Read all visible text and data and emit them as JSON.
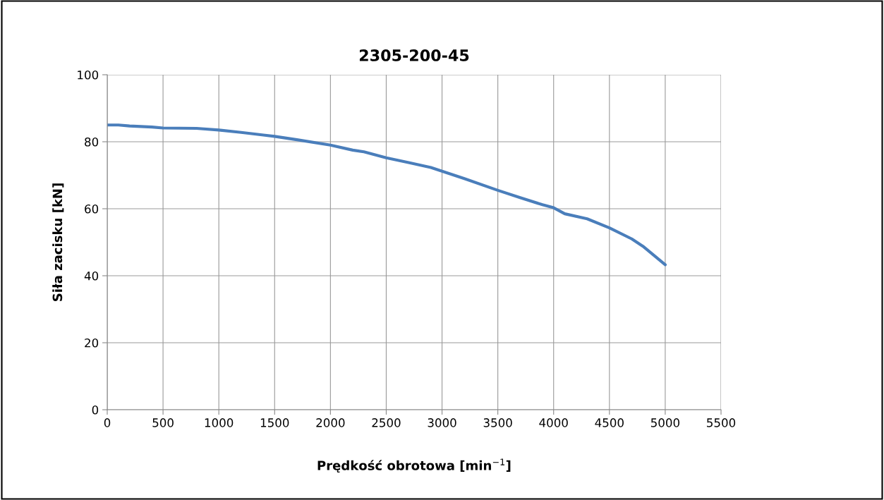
{
  "chart_data": {
    "type": "line",
    "title": "2305-200-45",
    "xlabel": "Prędkość obrotowa [min$^{−1}$]",
    "ylabel": "Siła zacisku [kN]",
    "x": [
      0,
      100,
      200,
      400,
      500,
      800,
      1000,
      1200,
      1400,
      1500,
      1700,
      2000,
      2200,
      2300,
      2500,
      2700,
      2900,
      3000,
      3200,
      3500,
      3700,
      3900,
      4000,
      4100,
      4300,
      4500,
      4700,
      4800,
      5000
    ],
    "series": [
      {
        "color": "#4a7ebb",
        "values": [
          85,
          85,
          84.7,
          84.4,
          84.1,
          84,
          83.5,
          82.8,
          82,
          81.6,
          80.6,
          79,
          77.5,
          77,
          75.2,
          73.8,
          72.3,
          71.2,
          69,
          65.5,
          63.3,
          61.2,
          60.3,
          58.5,
          57,
          54.3,
          51,
          48.8,
          43.3
        ]
      }
    ],
    "xlim": [
      0,
      5500
    ],
    "xticks": [
      0,
      500,
      1000,
      1500,
      2000,
      2500,
      3000,
      3500,
      4000,
      4500,
      5000,
      5500
    ],
    "ylim": [
      0,
      100
    ],
    "yticks": [
      0,
      20,
      40,
      60,
      80,
      100
    ],
    "grid": true,
    "marker": "none",
    "line_style": "solid"
  }
}
